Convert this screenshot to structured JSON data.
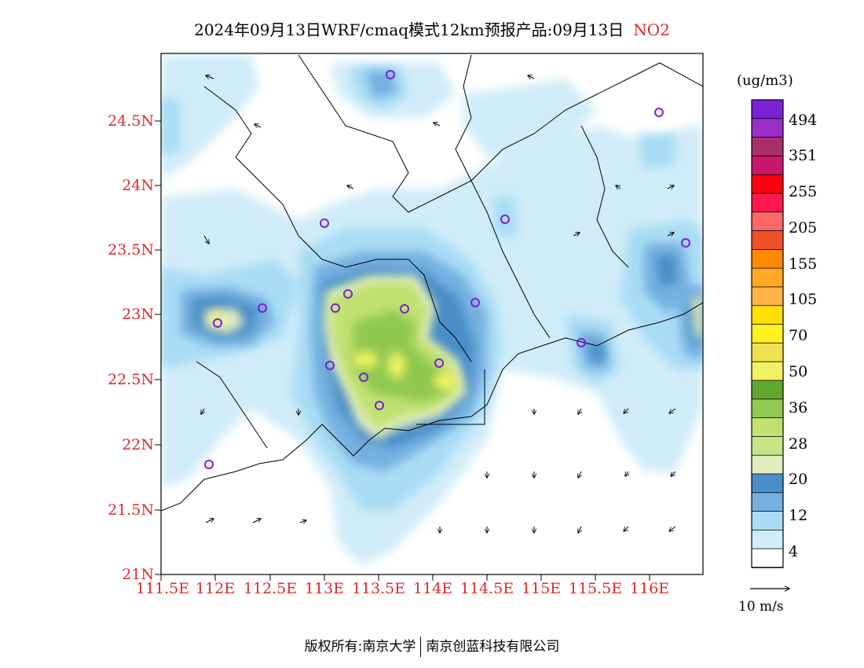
{
  "title": {
    "text": "2024年09月13日WRF/cmaq模式12km预报产品:09月13日",
    "pollutant": "NO2"
  },
  "axes": {
    "lat_labels": [
      "24.5N",
      "24N",
      "23.5N",
      "23N",
      "22.5N",
      "22N",
      "21.5N",
      "21N"
    ],
    "lon_labels": [
      "111.5E",
      "112E",
      "112.5E",
      "113E",
      "113.5E",
      "114E",
      "114.5E",
      "115E",
      "115.5E",
      "116E"
    ],
    "label_color": "#e0282a"
  },
  "colorbar": {
    "units": "(ug/m3)",
    "labels": [
      "494",
      "351",
      "255",
      "205",
      "155",
      "105",
      "70",
      "50",
      "36",
      "28",
      "20",
      "12",
      "4"
    ],
    "colors_top_to_bottom": [
      "#7b22d6",
      "#9b2fc8",
      "#a8306a",
      "#c8186e",
      "#ff0010",
      "#ff1850",
      "#ff6868",
      "#f05028",
      "#ff8800",
      "#ffa820",
      "#ffb448",
      "#ffe000",
      "#fff020",
      "#f0e050",
      "#f0f060",
      "#60a830",
      "#90c850",
      "#c0e070",
      "#c8e488",
      "#e0ecbc",
      "#4a8ec8",
      "#74b0e0",
      "#a8dcf4",
      "#d0ecf8",
      "#ffffff"
    ]
  },
  "wind_reference": {
    "label": "10 m/s"
  },
  "footer": {
    "left": "版权所有:南京大学",
    "right": "南京创蓝科技有限公司"
  }
}
